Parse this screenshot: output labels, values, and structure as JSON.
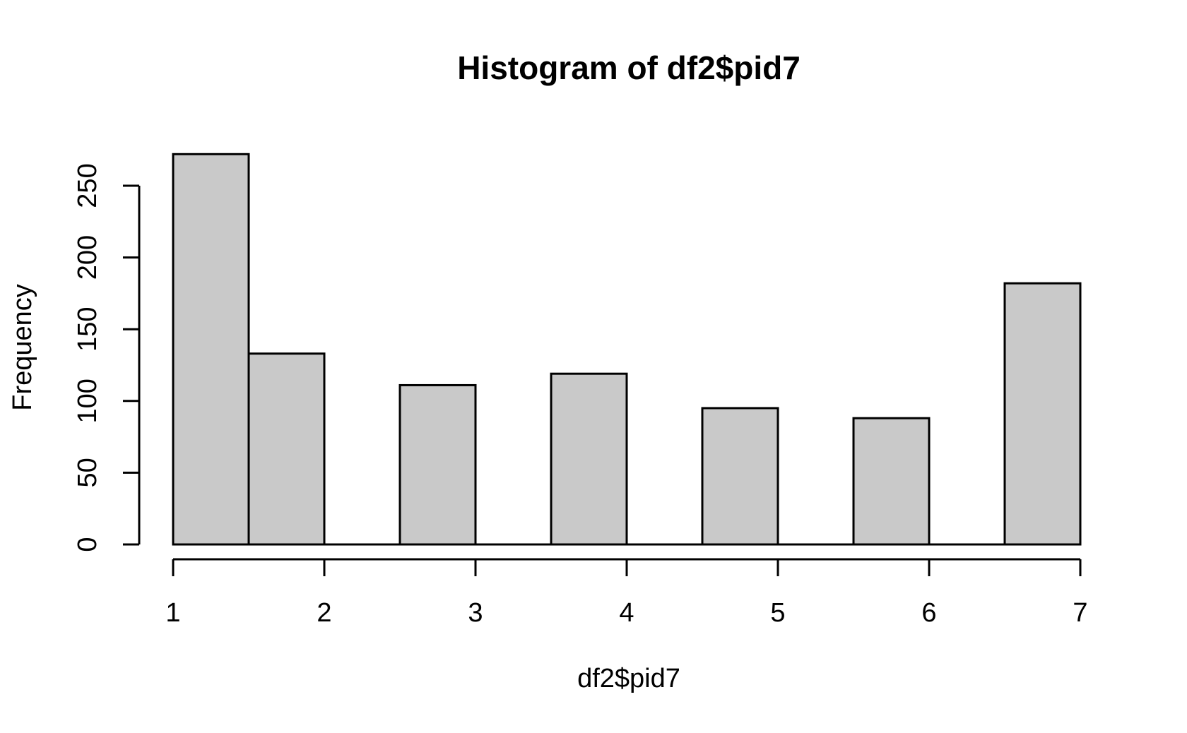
{
  "chart_data": {
    "type": "bar",
    "subtype": "histogram",
    "title": "Histogram of df2$pid7",
    "xlabel": "df2$pid7",
    "ylabel": "Frequency",
    "bins": [
      1,
      1.5,
      2,
      2.5,
      3,
      3.5,
      4,
      4.5,
      5,
      5.5,
      6,
      6.5,
      7
    ],
    "counts": [
      272,
      133,
      0,
      111,
      0,
      119,
      0,
      95,
      0,
      88,
      0,
      182
    ],
    "x_ticks": [
      "1",
      "2",
      "3",
      "4",
      "5",
      "6",
      "7"
    ],
    "x_tick_values": [
      1,
      2,
      3,
      4,
      5,
      6,
      7
    ],
    "y_ticks": [
      "0",
      "50",
      "100",
      "150",
      "200",
      "250"
    ],
    "y_tick_values": [
      0,
      50,
      100,
      150,
      200,
      250
    ],
    "xlim": [
      1,
      7
    ],
    "ylim": [
      0,
      272
    ],
    "grid": false,
    "legend_position": "none",
    "bar_fill": "#C9C9C9",
    "bar_stroke": "#000000",
    "axis_color": "#000000",
    "text_color": "#000000",
    "background": "#FFFFFF"
  }
}
